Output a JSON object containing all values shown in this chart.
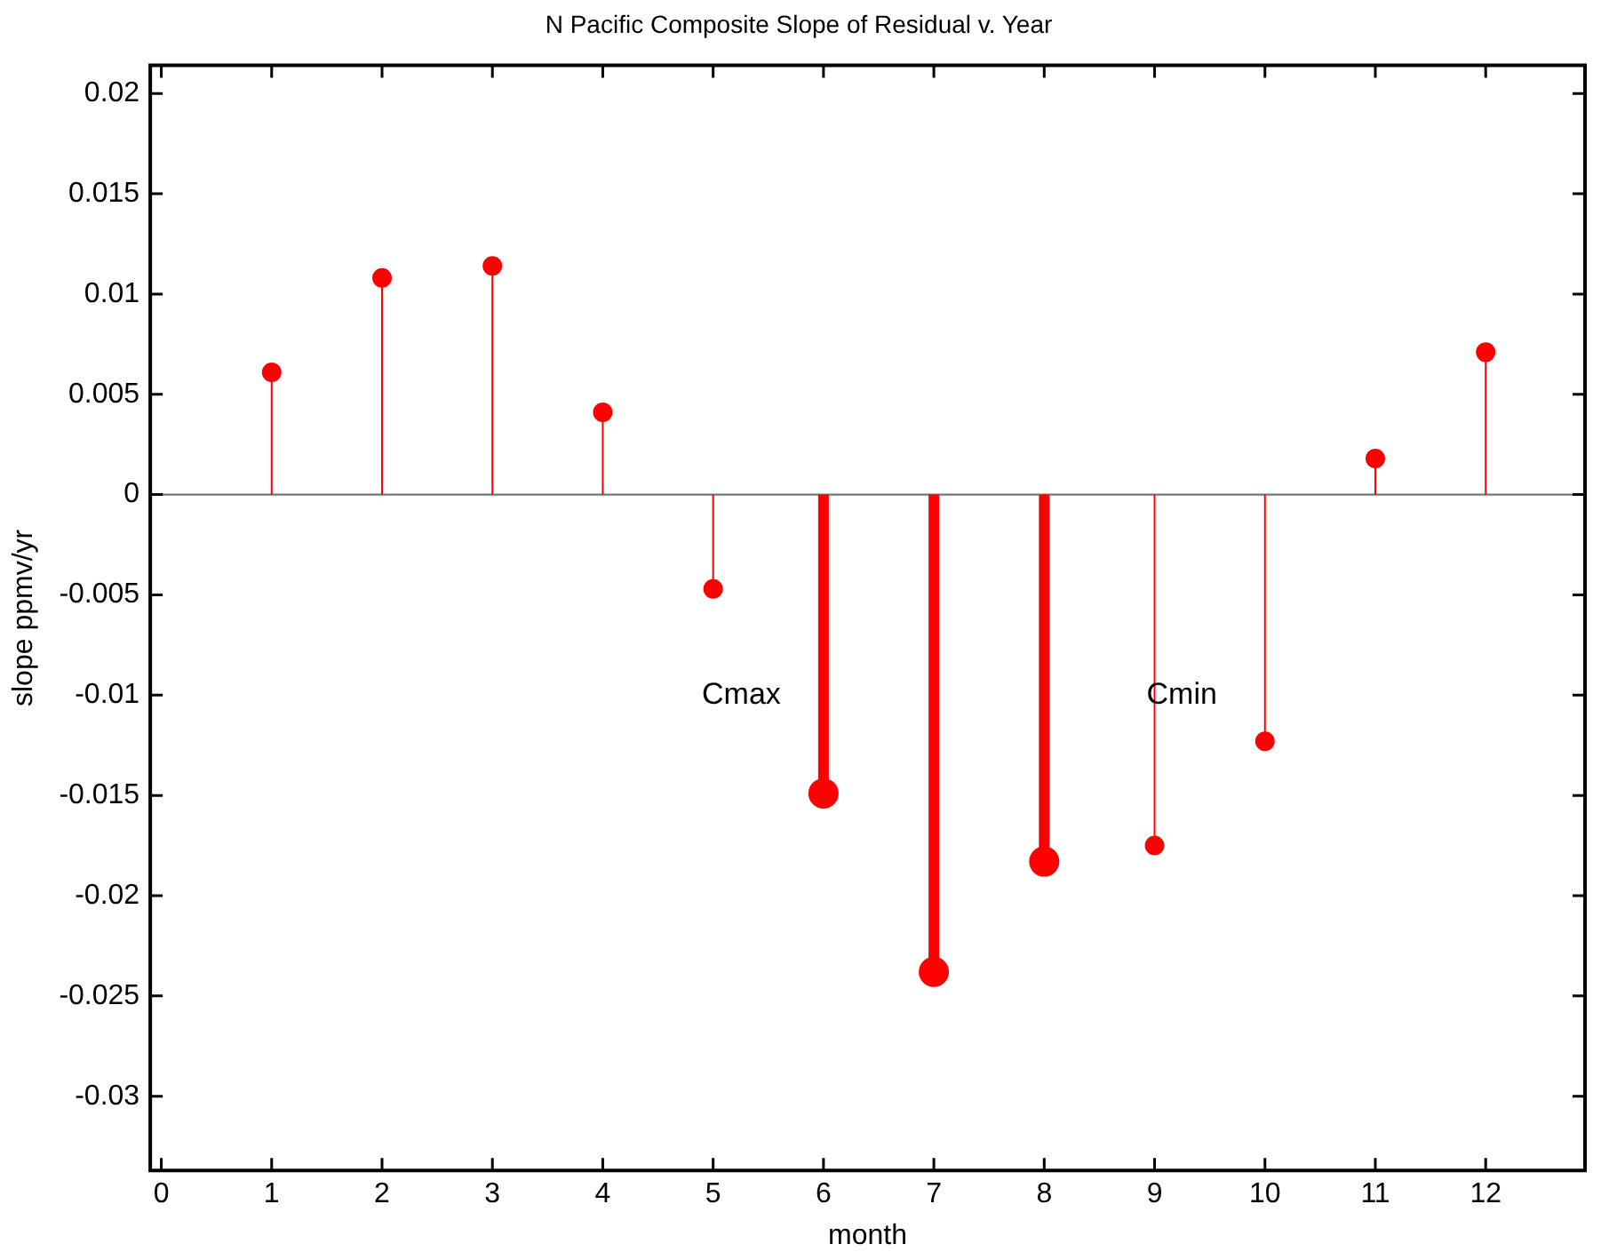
{
  "chart_data": {
    "type": "lollipop",
    "title": "N Pacific Composite Slope of Residual v. Year",
    "xlabel": "month",
    "ylabel": "slope ppmv/yr",
    "xlim": [
      -0.1,
      12.9
    ],
    "xticks": [
      0,
      1,
      2,
      3,
      4,
      5,
      6,
      7,
      8,
      9,
      10,
      11,
      12
    ],
    "ylim": [
      -0.0337,
      0.0214
    ],
    "yticks": [
      -0.03,
      -0.025,
      -0.02,
      -0.015,
      -0.01,
      -0.005,
      0,
      0.005,
      0.01,
      0.015,
      0.02
    ],
    "legend": false,
    "marker": "circle",
    "series": [
      {
        "color": "#ff0000",
        "x": [
          1,
          2,
          3,
          4,
          5,
          9,
          10,
          11,
          12
        ],
        "values": [
          0.0061,
          0.0108,
          0.0114,
          0.0041,
          -0.0047,
          -0.0175,
          -0.0123,
          0.0018,
          0.0071
        ]
      },
      {
        "color": "#ff0000",
        "x": [
          6,
          7,
          8
        ],
        "values": [
          -0.0149,
          -0.0238,
          -0.0183
        ]
      }
    ],
    "annotations": [
      "Cmax",
      "Cmin"
    ]
  }
}
